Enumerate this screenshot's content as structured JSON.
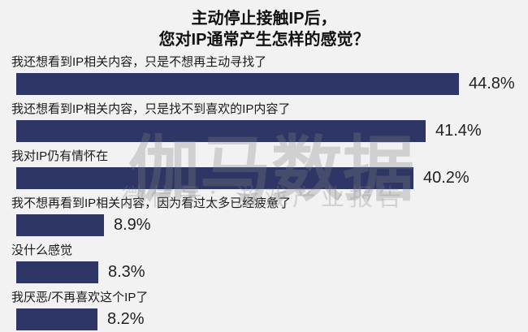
{
  "title": {
    "line1": "主动停止接触IP后，",
    "line2": "您对IP通常产生怎样的感觉？"
  },
  "watermark": {
    "main": "伽马数据",
    "sub": "微信号：游戏产业报告"
  },
  "colors": {
    "bar": "#2d3664",
    "background": "#f2f2f2",
    "label_text": "#1a1a1a",
    "value_text": "#1f1f1f",
    "watermark": "#808080"
  },
  "chart_data": {
    "type": "bar",
    "orientation": "horizontal",
    "title": "主动停止接触IP后，您对IP通常产生怎样的感觉？",
    "xlabel": "",
    "ylabel": "",
    "xlim": [
      0,
      50
    ],
    "grid": false,
    "legend": false,
    "categories": [
      "我还想看到IP相关内容，只是不想再主动寻找了",
      "我还想看到IP相关内容，只是找不到喜欢的IP内容了",
      "我对IP仍有情怀在",
      "我不想再看到IP相关内容，因为看过太多已经疲惫了",
      "没什么感觉",
      "我厌恶/不再喜欢这个IP了"
    ],
    "values": [
      44.8,
      41.4,
      40.2,
      8.9,
      8.3,
      8.2
    ],
    "value_labels": [
      "44.8%",
      "41.4%",
      "40.2%",
      "8.9%",
      "8.3%",
      "8.2%"
    ]
  }
}
